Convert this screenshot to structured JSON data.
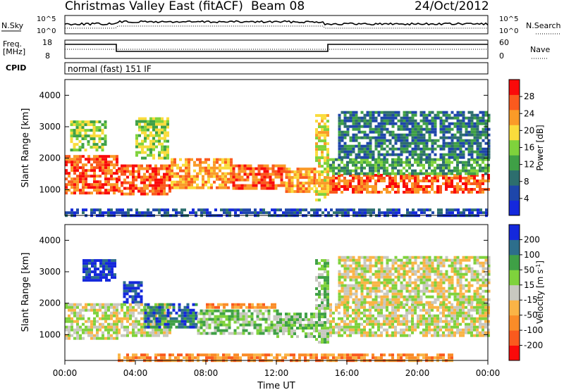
{
  "header": {
    "station": "Christmas Valley East (fitACF)",
    "beam": "Beam 08",
    "date": "24/Oct/2012"
  },
  "status_panels": {
    "nsky_label": "N.Sky",
    "nsky_ticks": [
      "10^5",
      "10^0"
    ],
    "nsearch_label": "N.Search",
    "nsearch_ticks": [
      "10^5",
      "10^0"
    ],
    "freq_label": "Freq.",
    "freq_unit": "[MHz]",
    "freq_ticks": [
      "18",
      "8"
    ],
    "nave_label": "Nave",
    "nave_ticks": [
      "60",
      "0"
    ],
    "cpid_label": "CPID",
    "cpid_value": "normal (fast) 151 IF"
  },
  "chart_data": [
    {
      "type": "heatmap",
      "name": "power",
      "ylabel": "Slant Range [km]",
      "yticks": [
        "4000",
        "3000",
        "2000",
        "1000"
      ],
      "ylim": [
        180,
        4500
      ],
      "colorbar_label": "Power [dB]",
      "colorbar_ticks": [
        "28",
        "24",
        "20",
        "16",
        "12",
        "8",
        "4"
      ],
      "colors": [
        "#1428dc",
        "#1e46aa",
        "#2d6e6e",
        "#3fa046",
        "#7fd23c",
        "#fadc3c",
        "#fa9b28",
        "#fa5a1e",
        "#fa0a0a"
      ],
      "regions": [
        {
          "t": [
            0.0,
            3.0
          ],
          "r": [
            900,
            2100
          ],
          "level": 7
        },
        {
          "t": [
            0.3,
            2.3
          ],
          "r": [
            2300,
            3200
          ],
          "level": 4
        },
        {
          "t": [
            3.0,
            6.0
          ],
          "r": [
            900,
            1800
          ],
          "level": 7
        },
        {
          "t": [
            4.0,
            5.8
          ],
          "r": [
            2000,
            3300
          ],
          "level": 4
        },
        {
          "t": [
            6.0,
            9.5
          ],
          "r": [
            1100,
            2000
          ],
          "level": 6
        },
        {
          "t": [
            9.5,
            12.5
          ],
          "r": [
            1000,
            1800
          ],
          "level": 7
        },
        {
          "t": [
            12.5,
            14.2
          ],
          "r": [
            900,
            1700
          ],
          "level": 6
        },
        {
          "t": [
            14.2,
            15.0
          ],
          "r": [
            700,
            3400
          ],
          "level": 5
        },
        {
          "t": [
            15.0,
            24.0
          ],
          "r": [
            950,
            1500
          ],
          "level": 7
        },
        {
          "t": [
            15.0,
            24.0
          ],
          "r": [
            1500,
            2000
          ],
          "level": 3
        },
        {
          "t": [
            15.5,
            24.0
          ],
          "r": [
            2000,
            3500
          ],
          "level": 2
        },
        {
          "t": [
            0.0,
            24.0
          ],
          "r": [
            200,
            400
          ],
          "level": 1
        }
      ]
    },
    {
      "type": "heatmap",
      "name": "velocity",
      "ylabel": "Slant Range [km]",
      "yticks": [
        "4000",
        "3000",
        "2000",
        "1000"
      ],
      "ylim": [
        180,
        4500
      ],
      "xlabel": "Time UT",
      "xticks": [
        "00:00",
        "04:00",
        "08:00",
        "12:00",
        "16:00",
        "20:00",
        "00:00"
      ],
      "xlim": [
        0,
        24
      ],
      "colorbar_label": "Velocity [m s",
      "colorbar_label_sup": "-1",
      "colorbar_label_end": "]",
      "colorbar_ticks": [
        "200",
        "100",
        "50",
        "15",
        "-15",
        "-50",
        "-100",
        "-200"
      ],
      "colors": [
        "#fa0a0a",
        "#fa5a1e",
        "#fa8c28",
        "#fab446",
        "#c8c8c0",
        "#7fd23c",
        "#3fa046",
        "#2d6e8c",
        "#1428dc"
      ],
      "regions": [
        {
          "t": [
            0.0,
            3.0
          ],
          "r": [
            900,
            2000
          ],
          "level": 4
        },
        {
          "t": [
            1.0,
            2.8
          ],
          "r": [
            2700,
            3400
          ],
          "level": 8
        },
        {
          "t": [
            3.3,
            4.3
          ],
          "r": [
            2000,
            2700
          ],
          "level": 8
        },
        {
          "t": [
            3.0,
            6.0
          ],
          "r": [
            1000,
            2000
          ],
          "level": 4
        },
        {
          "t": [
            4.5,
            7.5
          ],
          "r": [
            1200,
            2000
          ],
          "level": 7
        },
        {
          "t": [
            7.5,
            12.0
          ],
          "r": [
            1000,
            1800
          ],
          "level": 5
        },
        {
          "t": [
            8.0,
            12.0
          ],
          "r": [
            1900,
            2000
          ],
          "level": 2
        },
        {
          "t": [
            12.0,
            14.2
          ],
          "r": [
            900,
            1700
          ],
          "level": 5
        },
        {
          "t": [
            14.2,
            15.0
          ],
          "r": [
            800,
            3400
          ],
          "level": 5
        },
        {
          "t": [
            15.0,
            24.0
          ],
          "r": [
            1000,
            2000
          ],
          "level": 4
        },
        {
          "t": [
            15.5,
            24.0
          ],
          "r": [
            2000,
            3500
          ],
          "level": 4
        },
        {
          "t": [
            3.0,
            22.0
          ],
          "r": [
            200,
            400
          ],
          "level": 2
        }
      ]
    }
  ]
}
